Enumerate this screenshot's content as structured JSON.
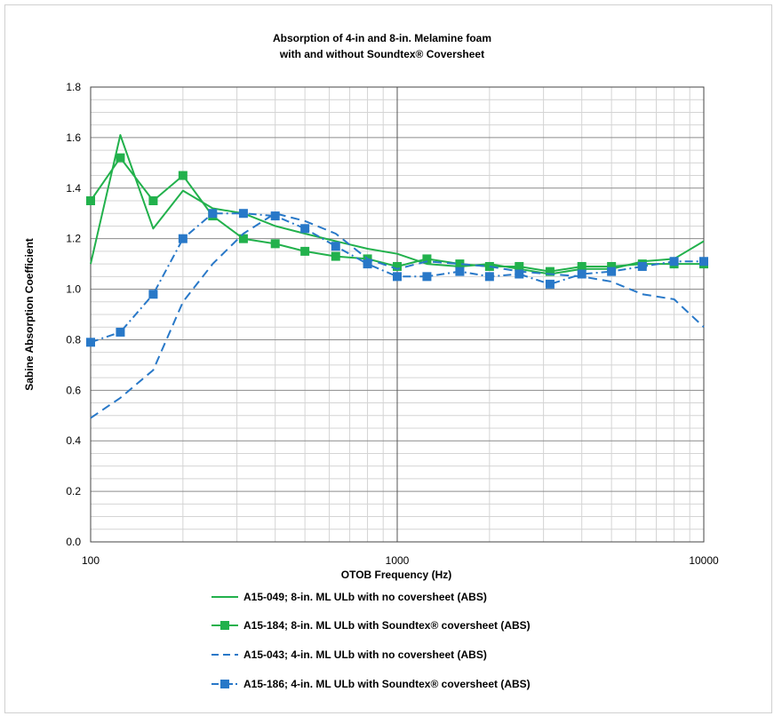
{
  "chart_data": {
    "type": "line",
    "title_lines": [
      "Absorption of 4-in and 8-in. Melamine foam",
      "with and without Soundtex® Coversheet"
    ],
    "xlabel": "OTOB Frequency (Hz)",
    "ylabel": "Sabine Absorption Coefficient",
    "xscale": "log",
    "xlim": [
      100,
      10000
    ],
    "ylim": [
      0,
      1.8
    ],
    "yticks": [
      "0.0",
      "0.2",
      "0.4",
      "0.6",
      "0.8",
      "1.0",
      "1.2",
      "1.4",
      "1.6",
      "1.8"
    ],
    "xticks": [
      "100",
      "1000",
      "10000"
    ],
    "grid": true,
    "legend_position": "bottom",
    "x": [
      100,
      125,
      160,
      200,
      250,
      315,
      400,
      500,
      630,
      800,
      1000,
      1250,
      1600,
      2000,
      2500,
      3150,
      4000,
      5000,
      6300,
      8000,
      10000
    ],
    "series": [
      {
        "name": "A15-049; 8-in. ML ULb  with no coversheet (ABS)",
        "color": "#22b14c",
        "style": "solid",
        "marker": "none",
        "values": [
          1.1,
          1.61,
          1.24,
          1.39,
          1.32,
          1.3,
          1.25,
          1.22,
          1.19,
          1.16,
          1.14,
          1.1,
          1.09,
          1.1,
          1.08,
          1.06,
          1.08,
          1.08,
          1.11,
          1.12,
          1.19
        ]
      },
      {
        "name": "A15-184; 8-in. ML ULb with Soundtex® coversheet (ABS)",
        "color": "#22b14c",
        "style": "solid",
        "marker": "square",
        "values": [
          1.35,
          1.52,
          1.35,
          1.45,
          1.29,
          1.2,
          1.18,
          1.15,
          1.13,
          1.12,
          1.09,
          1.12,
          1.1,
          1.09,
          1.09,
          1.07,
          1.09,
          1.09,
          1.1,
          1.1,
          1.1
        ]
      },
      {
        "name": "A15-043; 4-in. ML ULb  with no coversheet (ABS)",
        "color": "#2878c8",
        "style": "dashed",
        "marker": "none",
        "values": [
          0.49,
          0.57,
          0.68,
          0.95,
          1.1,
          1.22,
          1.3,
          1.27,
          1.22,
          1.12,
          1.08,
          1.11,
          1.1,
          1.09,
          1.07,
          1.06,
          1.05,
          1.03,
          0.98,
          0.96,
          0.85
        ]
      },
      {
        "name": "A15-186; 4-in. ML ULb with Soundtex® coversheet (ABS)",
        "color": "#2878c8",
        "style": "dashdot",
        "marker": "square",
        "values": [
          0.79,
          0.83,
          0.98,
          1.2,
          1.3,
          1.3,
          1.29,
          1.24,
          1.17,
          1.1,
          1.05,
          1.05,
          1.07,
          1.05,
          1.06,
          1.02,
          1.06,
          1.07,
          1.09,
          1.11,
          1.11
        ]
      }
    ]
  }
}
